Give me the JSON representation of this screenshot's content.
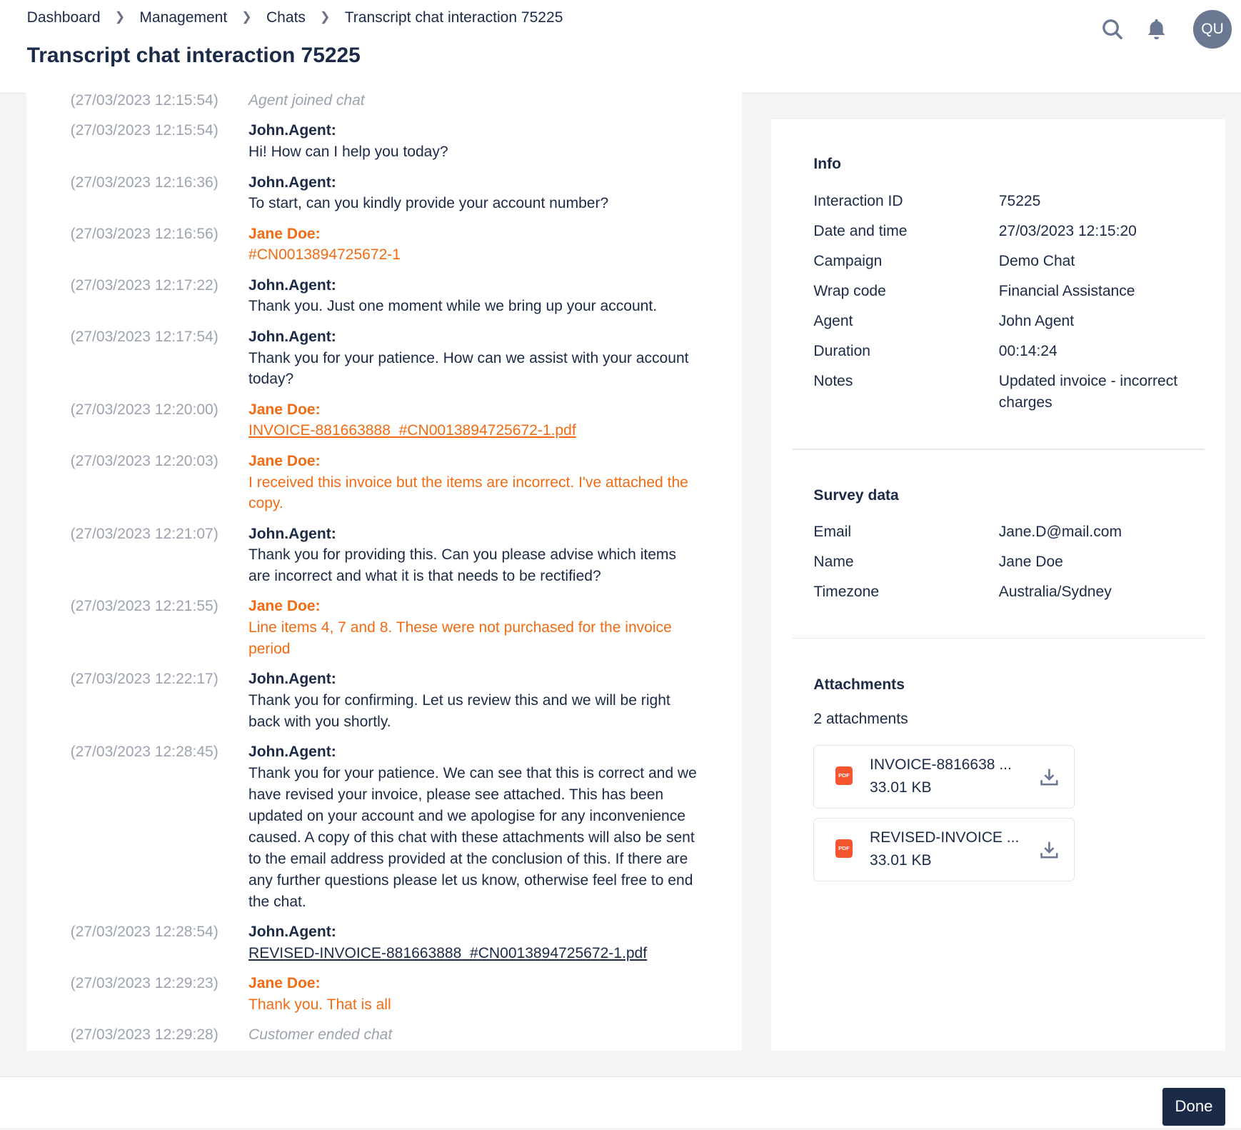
{
  "breadcrumb": [
    "Dashboard",
    "Management",
    "Chats",
    "Transcript chat interaction 75225"
  ],
  "page_title": "Transcript chat interaction 75225",
  "header": {
    "avatar_initials": "QU",
    "icons": [
      "search-icon",
      "bell-icon"
    ]
  },
  "colors": {
    "navy": "#1b2a47",
    "customer": "#f26b12",
    "timestamp": "#9ca3af",
    "pdf": "#f5552f"
  },
  "messages": [
    {
      "type": "system",
      "time": "(27/03/2023 12:15:54)",
      "text": "Agent joined chat"
    },
    {
      "type": "agent",
      "time": "(27/03/2023 12:15:54)",
      "sender": "John.Agent:",
      "text": "Hi! How can I help you today?"
    },
    {
      "type": "agent",
      "time": "(27/03/2023 12:16:36)",
      "sender": "John.Agent:",
      "text": "To start, can you kindly provide your account number?"
    },
    {
      "type": "customer",
      "time": "(27/03/2023 12:16:56)",
      "sender": "Jane Doe:",
      "text": "#CN0013894725672-1"
    },
    {
      "type": "agent",
      "time": "(27/03/2023 12:17:22)",
      "sender": "John.Agent:",
      "text": "Thank you. Just one moment while we bring up your account."
    },
    {
      "type": "agent",
      "time": "(27/03/2023 12:17:54)",
      "sender": "John.Agent:",
      "text": "Thank you for your patience. How can we assist with your account today?"
    },
    {
      "type": "customer",
      "time": "(27/03/2023 12:20:00)",
      "sender": "Jane Doe:",
      "text": "INVOICE-881663888_#CN0013894725672-1.pdf",
      "link": true
    },
    {
      "type": "customer",
      "time": "(27/03/2023 12:20:03)",
      "sender": "Jane Doe:",
      "text": "I received this invoice but the items are incorrect. I've attached the copy."
    },
    {
      "type": "agent",
      "time": "(27/03/2023 12:21:07)",
      "sender": "John.Agent:",
      "text": "Thank you for providing this. Can you please advise which items are incorrect and what it is that needs to be rectified?"
    },
    {
      "type": "customer",
      "time": "(27/03/2023 12:21:55)",
      "sender": "Jane Doe:",
      "text": "Line items 4, 7 and 8. These were not purchased for the invoice period"
    },
    {
      "type": "agent",
      "time": "(27/03/2023 12:22:17)",
      "sender": "John.Agent:",
      "text": "Thank you for confirming. Let us review this and we will be right back with you shortly."
    },
    {
      "type": "agent",
      "time": "(27/03/2023 12:28:45)",
      "sender": "John.Agent:",
      "text": "Thank you for your patience. We can see that this is correct and we have revised your invoice, please see attached. This has been updated on your account and we apologise for any inconvenience caused. A copy of this chat with these attachments will also be sent to the email address provided at the conclusion of this. If there are any further questions please let us know, otherwise feel free to end the chat."
    },
    {
      "type": "agent",
      "time": "(27/03/2023 12:28:54)",
      "sender": "John.Agent:",
      "text": "REVISED-INVOICE-881663888_#CN0013894725672-1.pdf",
      "link": true
    },
    {
      "type": "customer",
      "time": "(27/03/2023 12:29:23)",
      "sender": "Jane Doe:",
      "text": "Thank you. That is all"
    },
    {
      "type": "system",
      "time": "(27/03/2023 12:29:28)",
      "text": "Customer ended chat"
    }
  ],
  "info": {
    "title": "Info",
    "rows": [
      {
        "label": "Interaction ID",
        "value": "75225"
      },
      {
        "label": "Date and time",
        "value": "27/03/2023 12:15:20"
      },
      {
        "label": "Campaign",
        "value": "Demo Chat"
      },
      {
        "label": "Wrap code",
        "value": "Financial Assistance"
      },
      {
        "label": "Agent",
        "value": "John Agent"
      },
      {
        "label": "Duration",
        "value": "00:14:24"
      },
      {
        "label": "Notes",
        "value": "Updated invoice - incorrect charges"
      }
    ]
  },
  "survey": {
    "title": "Survey data",
    "rows": [
      {
        "label": "Email",
        "value": "Jane.D@mail.com"
      },
      {
        "label": "Name",
        "value": "Jane Doe"
      },
      {
        "label": "Timezone",
        "value": "Australia/Sydney"
      }
    ]
  },
  "attachments": {
    "title": "Attachments",
    "count_label": "2 attachments",
    "items": [
      {
        "badge": "PDF",
        "name": "INVOICE-8816638 ...",
        "size": "33.01 KB"
      },
      {
        "badge": "PDF",
        "name": "REVISED-INVOICE ...",
        "size": "33.01 KB"
      }
    ]
  },
  "footer": {
    "done_label": "Done"
  }
}
